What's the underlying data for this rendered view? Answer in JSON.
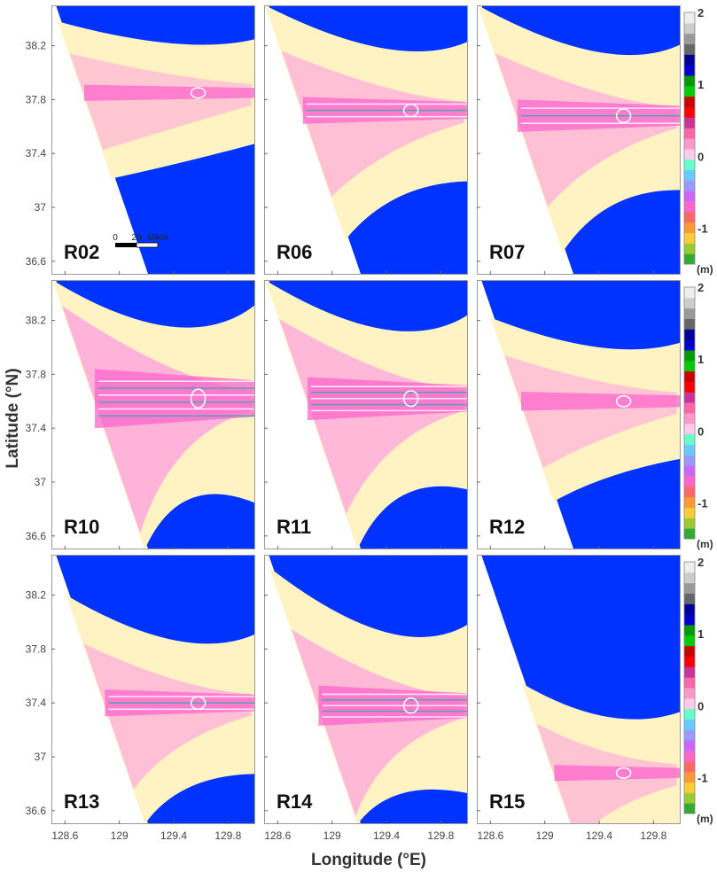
{
  "chart_data": {
    "type": "heatmap",
    "xlabel": "Longitude (°E)",
    "ylabel": "Latitude (°N)",
    "x_ticks": [
      "128.6",
      "129",
      "129.4",
      "129.8"
    ],
    "y_ticks": [
      "38.2",
      "37.8",
      "37.4",
      "37",
      "36.6"
    ],
    "x_tick_values": [
      128.6,
      129.0,
      129.4,
      129.8
    ],
    "y_tick_values": [
      38.2,
      37.8,
      37.4,
      37.0,
      36.6
    ],
    "xlim": [
      128.5,
      130.0
    ],
    "ylim": [
      36.5,
      38.5
    ],
    "panels": [
      {
        "label": "R02",
        "source_lat": 37.85,
        "band_halfwidth": 0.06,
        "intensity": 0.2
      },
      {
        "label": "R06",
        "source_lat": 37.72,
        "band_halfwidth": 0.1,
        "intensity": 0.5
      },
      {
        "label": "R07",
        "source_lat": 37.68,
        "band_halfwidth": 0.12,
        "intensity": 0.55
      },
      {
        "label": "R10",
        "source_lat": 37.62,
        "band_halfwidth": 0.22,
        "intensity": 1.0
      },
      {
        "label": "R11",
        "source_lat": 37.62,
        "band_halfwidth": 0.16,
        "intensity": 0.8
      },
      {
        "label": "R12",
        "source_lat": 37.6,
        "band_halfwidth": 0.07,
        "intensity": 0.3
      },
      {
        "label": "R13",
        "source_lat": 37.4,
        "band_halfwidth": 0.1,
        "intensity": 0.5
      },
      {
        "label": "R14",
        "source_lat": 37.38,
        "band_halfwidth": 0.15,
        "intensity": 0.75
      },
      {
        "label": "R15",
        "source_lat": 36.88,
        "band_halfwidth": 0.06,
        "intensity": 0.35
      }
    ],
    "colorbar": {
      "ticks": [
        "2",
        "1",
        "0",
        "-1"
      ],
      "tick_values": [
        2,
        1,
        0,
        -1
      ],
      "unit": "(m)",
      "range": [
        -1.5,
        2
      ],
      "colors": [
        "#33aa33",
        "#99cc33",
        "#ffcc33",
        "#ff9933",
        "#ff6666",
        "#ff66cc",
        "#cc66ff",
        "#9999ff",
        "#66ccff",
        "#66ffcc",
        "#ffccee",
        "#ff99cc",
        "#ff66aa",
        "#cc3399",
        "#ff0000",
        "#cc0000",
        "#00cc00",
        "#009900",
        "#0000cc",
        "#000099",
        "#666666",
        "#999999",
        "#cccccc",
        "#eeeeee"
      ]
    },
    "scale_bar": {
      "ticks": [
        "0",
        "20",
        "40km"
      ]
    },
    "palette": {
      "sea": "#0033ff",
      "land": "#ffffff",
      "zone_light": "#fff3c4",
      "zone_pink": "#ffb3d9",
      "zone_magenta": "#ff66cc",
      "band_teal": "#33aaaa"
    }
  }
}
